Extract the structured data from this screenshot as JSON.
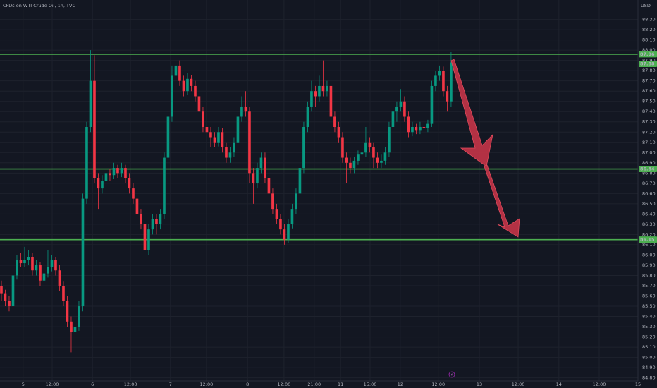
{
  "chart_data": {
    "type": "candlestick",
    "title": "CFDs on WTI Crude Oil, 1h, TVC",
    "currency": "USD",
    "up_color": "#089981",
    "down_color": "#f23645",
    "level_color": "#4caf50",
    "grid": true,
    "ylim": [
      84.77,
      88.49
    ],
    "xlim": [
      -0.36,
      164.2
    ],
    "yticks": [
      {
        "value": 84.8,
        "label": "84.80"
      },
      {
        "value": 84.9,
        "label": "84.90"
      },
      {
        "value": 85.0,
        "label": "85.00"
      },
      {
        "value": 85.1,
        "label": "85.10"
      },
      {
        "value": 85.2,
        "label": "85.20"
      },
      {
        "value": 85.3,
        "label": "85.30"
      },
      {
        "value": 85.4,
        "label": "85.40"
      },
      {
        "value": 85.5,
        "label": "85.50"
      },
      {
        "value": 85.6,
        "label": "85.60"
      },
      {
        "value": 85.7,
        "label": "85.70"
      },
      {
        "value": 85.8,
        "label": "85.80"
      },
      {
        "value": 85.9,
        "label": "85.90"
      },
      {
        "value": 86.0,
        "label": "86.00"
      },
      {
        "value": 86.1,
        "label": "86.10"
      },
      {
        "value": 86.2,
        "label": "86.20"
      },
      {
        "value": 86.3,
        "label": "86.30"
      },
      {
        "value": 86.4,
        "label": "86.40"
      },
      {
        "value": 86.5,
        "label": "86.50"
      },
      {
        "value": 86.6,
        "label": "86.60"
      },
      {
        "value": 86.7,
        "label": "86.70"
      },
      {
        "value": 86.8,
        "label": "86.80"
      },
      {
        "value": 86.9,
        "label": "86.90"
      },
      {
        "value": 87.0,
        "label": "87.00"
      },
      {
        "value": 87.1,
        "label": "87.10"
      },
      {
        "value": 87.2,
        "label": "87.20"
      },
      {
        "value": 87.3,
        "label": "87.30"
      },
      {
        "value": 87.4,
        "label": "87.40"
      },
      {
        "value": 87.5,
        "label": "87.50"
      },
      {
        "value": 87.6,
        "label": "87.60"
      },
      {
        "value": 87.7,
        "label": "87.70"
      },
      {
        "value": 87.8,
        "label": "87.80"
      },
      {
        "value": 87.9,
        "label": "87.90"
      },
      {
        "value": 88.0,
        "label": "88.00"
      },
      {
        "value": 88.1,
        "label": "88.10"
      },
      {
        "value": 88.2,
        "label": "88.20"
      },
      {
        "value": 88.3,
        "label": "88.30"
      }
    ],
    "xticks": [
      {
        "value": 5.6,
        "label": "5"
      },
      {
        "value": 13.1,
        "label": "12:00"
      },
      {
        "value": 23.5,
        "label": "6"
      },
      {
        "value": 33.3,
        "label": "12:00"
      },
      {
        "value": 43.6,
        "label": "7"
      },
      {
        "value": 52.9,
        "label": "12:00"
      },
      {
        "value": 63.5,
        "label": "8"
      },
      {
        "value": 72.9,
        "label": "12:00"
      },
      {
        "value": 80.7,
        "label": "21:00"
      },
      {
        "value": 87.5,
        "label": "11"
      },
      {
        "value": 95.1,
        "label": "15:00"
      },
      {
        "value": 102.9,
        "label": "12"
      },
      {
        "value": 112.7,
        "label": "12:00"
      },
      {
        "value": 123.3,
        "label": "13"
      },
      {
        "value": 133.3,
        "label": "12:00"
      },
      {
        "value": 143.8,
        "label": "14"
      },
      {
        "value": 154.2,
        "label": "12:00"
      },
      {
        "value": 164.2,
        "label": "15"
      }
    ],
    "levels": [
      {
        "value": 87.96,
        "label": "87.96"
      },
      {
        "value": 86.84,
        "label": "86.84"
      },
      {
        "value": 86.15,
        "label": "86.15"
      }
    ],
    "ohlc": [
      [
        85.7,
        85.75,
        85.55,
        85.62
      ],
      [
        85.62,
        85.66,
        85.5,
        85.55
      ],
      [
        85.55,
        85.6,
        85.45,
        85.5
      ],
      [
        85.5,
        85.85,
        85.48,
        85.8
      ],
      [
        85.8,
        86.0,
        85.76,
        85.95
      ],
      [
        85.95,
        86.02,
        85.88,
        85.92
      ],
      [
        85.92,
        86.08,
        85.88,
        85.95
      ],
      [
        85.95,
        86.05,
        85.9,
        85.98
      ],
      [
        85.98,
        86.02,
        85.8,
        85.85
      ],
      [
        85.85,
        85.95,
        85.8,
        85.9
      ],
      [
        85.9,
        85.93,
        85.7,
        85.75
      ],
      [
        85.75,
        85.88,
        85.72,
        85.82
      ],
      [
        85.82,
        86.05,
        85.78,
        85.88
      ],
      [
        85.88,
        86.0,
        85.84,
        85.95
      ],
      [
        85.95,
        85.98,
        85.8,
        85.85
      ],
      [
        85.85,
        85.9,
        85.65,
        85.7
      ],
      [
        85.7,
        85.74,
        85.5,
        85.55
      ],
      [
        85.55,
        85.6,
        85.3,
        85.35
      ],
      [
        85.35,
        85.4,
        85.05,
        85.25
      ],
      [
        85.25,
        85.38,
        85.15,
        85.3
      ],
      [
        85.3,
        85.55,
        85.26,
        85.5
      ],
      [
        85.5,
        86.6,
        85.45,
        86.55
      ],
      [
        86.55,
        87.3,
        86.5,
        87.25
      ],
      [
        87.25,
        88.0,
        87.2,
        87.7
      ],
      [
        87.7,
        87.95,
        86.7,
        86.75
      ],
      [
        86.75,
        86.8,
        86.45,
        86.65
      ],
      [
        86.65,
        86.78,
        86.6,
        86.72
      ],
      [
        86.72,
        86.85,
        86.68,
        86.8
      ],
      [
        86.8,
        86.84,
        86.72,
        86.78
      ],
      [
        86.78,
        86.9,
        86.74,
        86.85
      ],
      [
        86.85,
        86.88,
        86.75,
        86.8
      ],
      [
        86.8,
        86.9,
        86.76,
        86.85
      ],
      [
        86.85,
        86.88,
        86.7,
        86.75
      ],
      [
        86.75,
        86.8,
        86.6,
        86.65
      ],
      [
        86.65,
        86.7,
        86.5,
        86.55
      ],
      [
        86.55,
        86.6,
        86.35,
        86.4
      ],
      [
        86.4,
        86.45,
        86.25,
        86.3
      ],
      [
        86.3,
        86.34,
        85.95,
        86.05
      ],
      [
        86.05,
        86.3,
        86.0,
        86.25
      ],
      [
        86.25,
        86.4,
        86.2,
        86.35
      ],
      [
        86.35,
        86.4,
        86.2,
        86.3
      ],
      [
        86.3,
        86.45,
        86.25,
        86.4
      ],
      [
        86.4,
        87.0,
        86.35,
        86.95
      ],
      [
        86.95,
        87.4,
        86.9,
        87.35
      ],
      [
        87.35,
        87.85,
        87.3,
        87.75
      ],
      [
        87.75,
        87.98,
        87.7,
        87.85
      ],
      [
        87.85,
        87.9,
        87.65,
        87.7
      ],
      [
        87.7,
        87.75,
        87.55,
        87.6
      ],
      [
        87.6,
        87.78,
        87.56,
        87.72
      ],
      [
        87.72,
        87.76,
        87.6,
        87.65
      ],
      [
        87.65,
        87.7,
        87.5,
        87.55
      ],
      [
        87.55,
        87.6,
        87.35,
        87.4
      ],
      [
        87.4,
        87.45,
        87.2,
        87.25
      ],
      [
        87.25,
        87.3,
        87.15,
        87.2
      ],
      [
        87.2,
        87.25,
        87.05,
        87.15
      ],
      [
        87.15,
        87.2,
        87.05,
        87.1
      ],
      [
        87.1,
        87.25,
        87.06,
        87.2
      ],
      [
        87.2,
        87.24,
        87.0,
        87.05
      ],
      [
        87.05,
        87.1,
        86.9,
        86.95
      ],
      [
        86.95,
        87.05,
        86.9,
        87.0
      ],
      [
        87.0,
        87.15,
        86.96,
        87.1
      ],
      [
        87.1,
        87.4,
        87.05,
        87.35
      ],
      [
        87.35,
        87.55,
        87.3,
        87.45
      ],
      [
        87.45,
        87.6,
        87.35,
        87.4
      ],
      [
        87.4,
        87.45,
        86.7,
        86.8
      ],
      [
        86.8,
        86.85,
        86.5,
        86.7
      ],
      [
        86.7,
        86.9,
        86.65,
        86.85
      ],
      [
        86.85,
        87.0,
        86.8,
        86.95
      ],
      [
        86.95,
        87.0,
        86.7,
        86.75
      ],
      [
        86.75,
        86.8,
        86.55,
        86.6
      ],
      [
        86.6,
        86.65,
        86.4,
        86.45
      ],
      [
        86.45,
        86.5,
        86.3,
        86.35
      ],
      [
        86.35,
        86.4,
        86.2,
        86.25
      ],
      [
        86.25,
        86.3,
        86.1,
        86.15
      ],
      [
        86.15,
        86.35,
        86.12,
        86.3
      ],
      [
        86.3,
        86.5,
        86.26,
        86.45
      ],
      [
        86.45,
        86.65,
        86.4,
        86.6
      ],
      [
        86.6,
        86.9,
        86.55,
        86.85
      ],
      [
        86.85,
        87.3,
        86.8,
        87.25
      ],
      [
        87.25,
        87.5,
        87.2,
        87.45
      ],
      [
        87.45,
        87.7,
        87.4,
        87.6
      ],
      [
        87.6,
        87.65,
        87.45,
        87.55
      ],
      [
        87.55,
        87.75,
        87.5,
        87.65
      ],
      [
        87.65,
        87.9,
        87.55,
        87.6
      ],
      [
        87.6,
        87.7,
        87.55,
        87.65
      ],
      [
        87.65,
        87.7,
        87.3,
        87.35
      ],
      [
        87.35,
        87.4,
        87.2,
        87.25
      ],
      [
        87.25,
        87.3,
        87.1,
        87.15
      ],
      [
        87.15,
        87.2,
        86.9,
        86.95
      ],
      [
        86.95,
        87.0,
        86.7,
        86.9
      ],
      [
        86.9,
        86.95,
        86.8,
        86.85
      ],
      [
        86.85,
        86.96,
        86.8,
        86.92
      ],
      [
        86.92,
        87.02,
        86.88,
        86.98
      ],
      [
        86.98,
        87.05,
        86.94,
        87.0
      ],
      [
        87.0,
        87.25,
        86.96,
        87.1
      ],
      [
        87.1,
        87.15,
        87.0,
        87.05
      ],
      [
        87.05,
        87.1,
        86.85,
        86.95
      ],
      [
        86.95,
        87.0,
        86.85,
        86.9
      ],
      [
        86.9,
        86.98,
        86.85,
        86.92
      ],
      [
        86.92,
        87.05,
        86.88,
        87.0
      ],
      [
        87.0,
        87.3,
        86.96,
        87.25
      ],
      [
        87.25,
        88.1,
        87.2,
        87.4
      ],
      [
        87.4,
        87.5,
        87.3,
        87.45
      ],
      [
        87.45,
        87.62,
        87.4,
        87.5
      ],
      [
        87.5,
        87.55,
        87.3,
        87.35
      ],
      [
        87.35,
        87.4,
        87.15,
        87.2
      ],
      [
        87.2,
        87.3,
        87.16,
        87.25
      ],
      [
        87.25,
        87.28,
        87.18,
        87.22
      ],
      [
        87.22,
        87.3,
        87.18,
        87.25
      ],
      [
        87.25,
        87.28,
        87.2,
        87.24
      ],
      [
        87.24,
        87.32,
        87.2,
        87.28
      ],
      [
        87.28,
        87.7,
        87.25,
        87.65
      ],
      [
        87.65,
        87.8,
        87.6,
        87.75
      ],
      [
        87.75,
        87.85,
        87.7,
        87.8
      ],
      [
        87.8,
        87.84,
        87.55,
        87.6
      ],
      [
        87.6,
        87.65,
        87.4,
        87.5
      ],
      [
        87.5,
        87.98,
        87.45,
        87.88
      ]
    ]
  }
}
